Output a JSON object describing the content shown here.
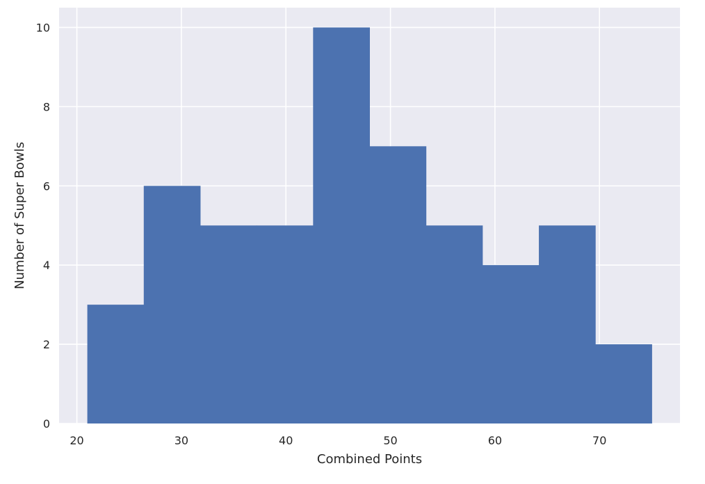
{
  "chart_data": {
    "type": "bar",
    "subtype": "histogram",
    "title": "",
    "xlabel": "Combined Points",
    "ylabel": "Number of Super Bowls",
    "xlim": [
      18.3,
      77.7
    ],
    "ylim": [
      0,
      10.5
    ],
    "x_ticks": [
      "20",
      "30",
      "40",
      "50",
      "60",
      "70"
    ],
    "x_tick_values": [
      20,
      30,
      40,
      50,
      60,
      70
    ],
    "y_ticks": [
      "0",
      "2",
      "4",
      "6",
      "8",
      "10"
    ],
    "y_tick_values": [
      0,
      2,
      4,
      6,
      8,
      10
    ],
    "bin_edges": [
      21.0,
      26.4,
      31.8,
      37.2,
      42.6,
      48.0,
      53.4,
      58.8,
      64.2,
      69.6,
      75.0
    ],
    "values": [
      3,
      6,
      5,
      5,
      10,
      7,
      5,
      4,
      5,
      2
    ],
    "grid": true,
    "colors": {
      "bar": "#4c72b0",
      "plot_background": "#eaeaf2",
      "grid": "#ffffff"
    }
  }
}
